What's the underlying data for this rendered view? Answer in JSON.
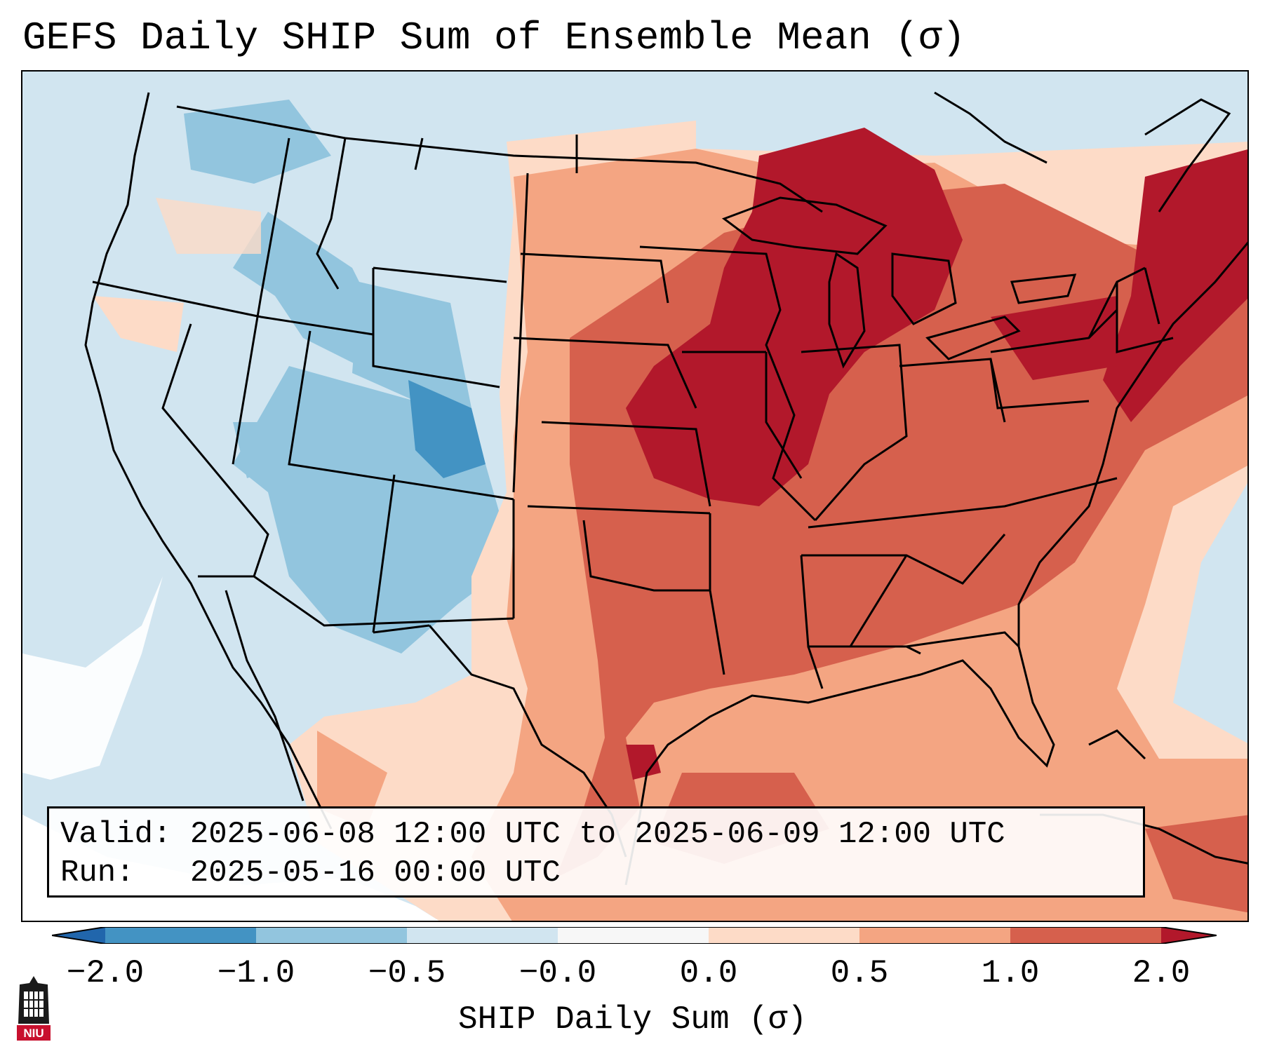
{
  "title": "GEFS Daily SHIP Sum of Ensemble Mean (σ)",
  "info": {
    "valid_label": "Valid:",
    "valid_value": "2025-06-08 12:00 UTC to 2025-06-09 12:00 UTC",
    "run_label": "Run:",
    "run_value": "2025-05-16 00:00 UTC"
  },
  "colorbar": {
    "label": "SHIP Daily Sum (σ)",
    "ticks": [
      "−2.0",
      "−1.0",
      "−0.5",
      "−0.0",
      "0.0",
      "0.5",
      "1.0",
      "2.0"
    ],
    "colors": [
      "#4393c3",
      "#92c5de",
      "#d1e5f0",
      "#f7f7f7",
      "#fddbc7",
      "#f4a582",
      "#d6604d",
      "#b2182b"
    ],
    "extend_low_color": "#2166ac",
    "extend_high_color": "#b2182b"
  },
  "map": {
    "region": "Continental United States",
    "colors": {
      "ocean_neutral": "#d1e5f0",
      "strong_positive": "#b2182b",
      "positive": "#d6604d",
      "mild_positive": "#f4a582",
      "slight_positive": "#fddbc7",
      "neutral": "#f7f7f7",
      "slight_negative": "#d1e5f0",
      "mild_negative": "#92c5de",
      "negative": "#4393c3",
      "borders": "#000000"
    }
  },
  "logo": {
    "text": "NIU",
    "color": "#c8102e"
  }
}
